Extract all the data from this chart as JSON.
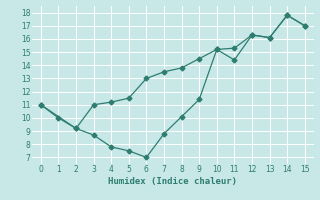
{
  "line1_x": [
    0,
    1,
    2,
    3,
    4,
    5,
    6,
    7,
    8,
    9,
    10,
    11,
    12,
    13,
    14,
    15
  ],
  "line1_y": [
    11,
    10,
    9.2,
    8.7,
    7.8,
    7.5,
    7.0,
    8.8,
    10.1,
    11.4,
    15.2,
    14.4,
    16.3,
    16.1,
    17.8,
    17.0
  ],
  "line2_x": [
    0,
    2,
    3,
    4,
    5,
    6,
    7,
    8,
    9,
    10,
    11,
    12,
    13,
    14,
    15
  ],
  "line2_y": [
    11,
    9.2,
    11.0,
    11.2,
    11.5,
    13.0,
    13.5,
    13.8,
    14.5,
    15.2,
    15.3,
    16.3,
    16.1,
    17.8,
    17.0
  ],
  "color": "#2E7D70",
  "bg_color": "#C8E8E8",
  "grid_color": "#FFFFFF",
  "xlabel": "Humidex (Indice chaleur)",
  "xlim": [
    -0.5,
    15.5
  ],
  "ylim": [
    6.5,
    18.5
  ],
  "yticks": [
    7,
    8,
    9,
    10,
    11,
    12,
    13,
    14,
    15,
    16,
    17,
    18
  ],
  "xticks": [
    0,
    1,
    2,
    3,
    4,
    5,
    6,
    7,
    8,
    9,
    10,
    11,
    12,
    13,
    14,
    15
  ],
  "marker": "D",
  "markersize": 2.5,
  "linewidth": 0.9
}
